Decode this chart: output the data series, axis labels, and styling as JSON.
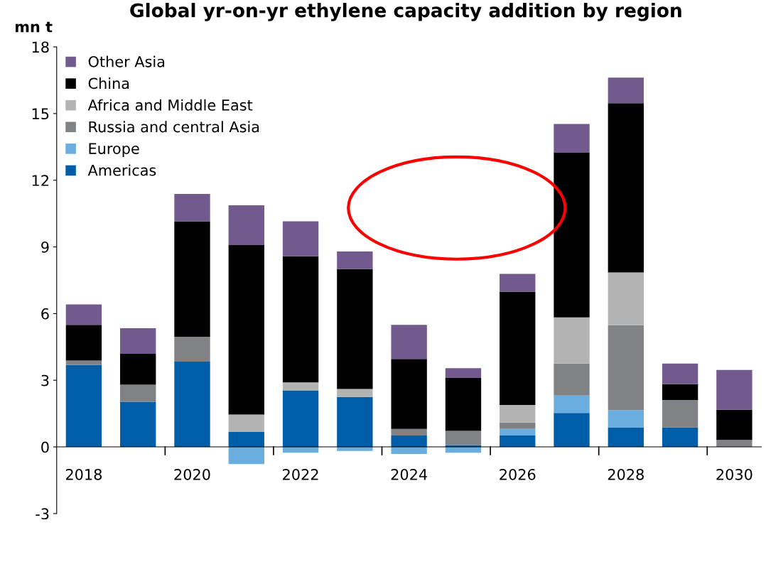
{
  "chart_data": {
    "type": "bar",
    "title": "Global yr-on-yr ethylene capacity addition by region",
    "ylabel": "mn t",
    "stacked": true,
    "categories": [
      "2018",
      null,
      "2020",
      null,
      "2022",
      null,
      "2024",
      null,
      "2026",
      null,
      "2028",
      null,
      "2030"
    ],
    "series": [
      {
        "name": "Americas",
        "color": "#005ea8",
        "values": [
          3.69,
          2.03,
          3.84,
          0.67,
          2.54,
          2.25,
          0.51,
          0.08,
          0.51,
          1.53,
          0.88,
          0.88,
          0
        ]
      },
      {
        "name": "Europe",
        "color": "#6aaddf",
        "values": [
          0,
          0,
          0,
          -0.77,
          -0.26,
          -0.18,
          -0.32,
          -0.26,
          0.3,
          0.78,
          0.78,
          0,
          0
        ]
      },
      {
        "name": "Russia and central Asia",
        "color": "#818286",
        "values": [
          0.2,
          0.77,
          1.12,
          0,
          0,
          0,
          0.3,
          0.64,
          0.29,
          1.44,
          3.82,
          1.23,
          0.31
        ]
      },
      {
        "name": "Africa and Middle East",
        "color": "#b3b3b3",
        "values": [
          0,
          0,
          0,
          0.79,
          0.36,
          0.36,
          0,
          0,
          0.79,
          2.08,
          2.37,
          0,
          0
        ]
      },
      {
        "name": "China",
        "color": "#000000",
        "values": [
          1.6,
          1.39,
          5.19,
          7.62,
          5.68,
          5.39,
          3.15,
          2.38,
          5.1,
          7.41,
          7.62,
          0.71,
          1.36
        ]
      },
      {
        "name": "Other Asia",
        "color": "#725a8e",
        "values": [
          0.92,
          1.15,
          1.23,
          1.79,
          1.57,
          0.79,
          1.53,
          0.44,
          0.8,
          1.29,
          1.15,
          0.93,
          1.79
        ]
      }
    ],
    "ylim": [
      -3,
      18
    ],
    "yticks": [
      -3,
      0,
      3,
      6,
      9,
      12,
      15,
      18
    ],
    "grid": false,
    "legend": "top left"
  }
}
